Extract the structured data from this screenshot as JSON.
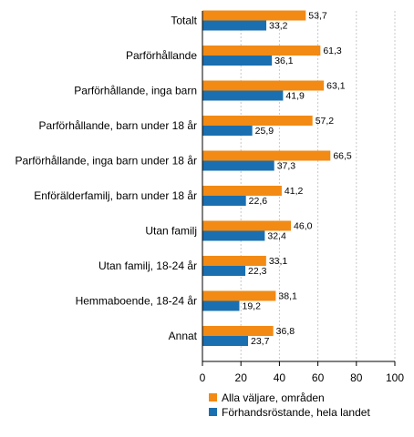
{
  "chart_data": {
    "type": "bar",
    "orientation": "horizontal",
    "categories": [
      "Totalt",
      "Parförhållande",
      "Parförhållande, inga barn",
      "Parförhållande, barn under 18 år",
      "Parförhållande, inga barn under 18 år",
      "Enförälderfamilj, barn under 18 år",
      "Utan familj",
      "Utan familj, 18-24 år",
      "Hemmaboende, 18-24 år",
      "Annat"
    ],
    "series": [
      {
        "name": "Alla väljare, områden",
        "color": "#f28a14",
        "values": [
          53.7,
          61.3,
          63.1,
          57.2,
          66.5,
          41.2,
          46.0,
          33.1,
          38.1,
          36.8
        ],
        "labels": [
          "53,7",
          "61,3",
          "63,1",
          "57,2",
          "66,5",
          "41,2",
          "46,0",
          "33,1",
          "38,1",
          "36,8"
        ]
      },
      {
        "name": "Förhandsröstande, hela landet",
        "color": "#1a6fb0",
        "values": [
          33.2,
          36.1,
          41.9,
          25.9,
          37.3,
          22.6,
          32.4,
          22.3,
          19.2,
          23.7
        ],
        "labels": [
          "33,2",
          "36,1",
          "41,9",
          "25,9",
          "37,3",
          "22,6",
          "32,4",
          "22,3",
          "19,2",
          "23,7"
        ]
      }
    ],
    "xlim": [
      0,
      100
    ],
    "xticks": [
      0,
      20,
      40,
      60,
      80,
      100
    ],
    "grid": true,
    "legend_position": "bottom"
  }
}
